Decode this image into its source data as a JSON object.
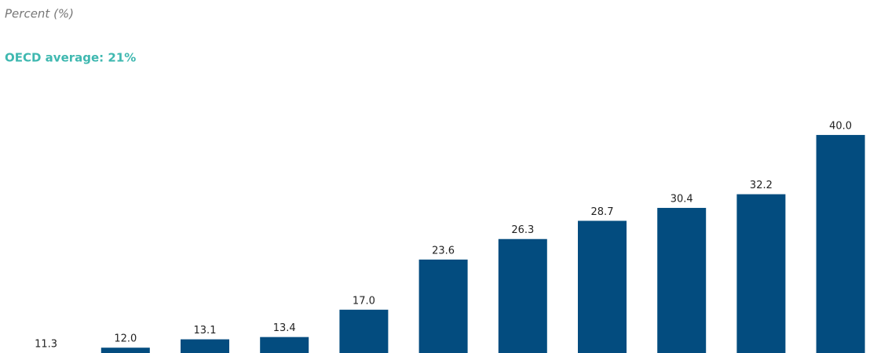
{
  "chart_data": {
    "type": "bar",
    "title": "Percent (%)",
    "subtitle": "OECD average: 21%",
    "categories": [
      null,
      null,
      null,
      null,
      null,
      null,
      null,
      null,
      null,
      null,
      null
    ],
    "values": [
      11.3,
      12.0,
      13.1,
      13.4,
      17.0,
      23.6,
      26.3,
      28.7,
      30.4,
      32.2,
      40.0
    ],
    "value_labels": [
      "11.3",
      "12.0",
      "13.1",
      "13.4",
      "17.0",
      "23.6",
      "26.3",
      "28.7",
      "30.4",
      "32.2",
      "40.0"
    ],
    "color": "#034c7f",
    "ylim": [
      11.3,
      43
    ]
  }
}
